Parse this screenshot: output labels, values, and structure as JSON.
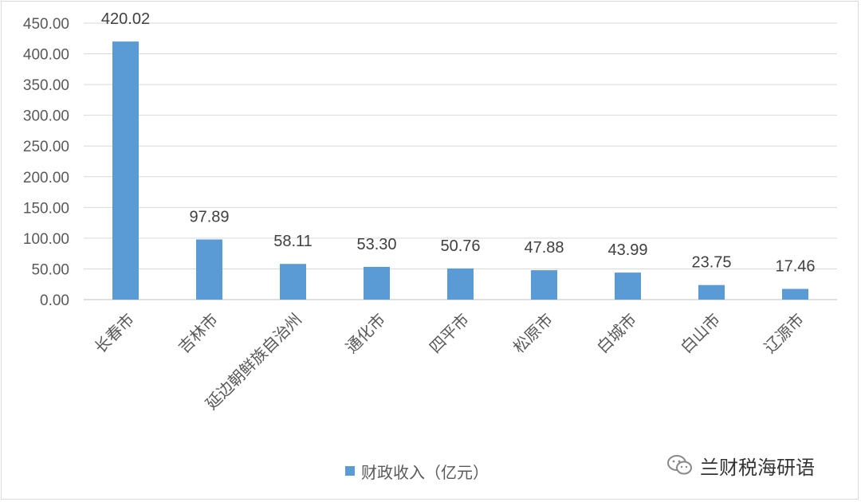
{
  "chart_data": {
    "type": "bar",
    "categories": [
      "长春市",
      "吉林市",
      "延边朝鲜族自治州",
      "通化市",
      "四平市",
      "松原市",
      "白城市",
      "白山市",
      "辽源市"
    ],
    "series": [
      {
        "name": "财政收入（亿元）",
        "values": [
          420.02,
          97.89,
          58.11,
          53.3,
          50.76,
          47.88,
          43.99,
          23.75,
          17.46
        ],
        "data_labels": [
          "420.02",
          "97.89",
          "58.11",
          "53.30",
          "50.76",
          "47.88",
          "43.99",
          "23.75",
          "17.46"
        ]
      }
    ],
    "ylim": [
      0,
      450
    ],
    "y_ticks": [
      "0.00",
      "50.00",
      "100.00",
      "150.00",
      "200.00",
      "250.00",
      "300.00",
      "350.00",
      "400.00",
      "450.00"
    ],
    "y_tick_values": [
      0,
      50,
      100,
      150,
      200,
      250,
      300,
      350,
      400,
      450
    ],
    "grid": true,
    "legend_position": "bottom",
    "title": "",
    "xlabel": "",
    "ylabel": "",
    "colors": {
      "bar": "#5b9bd5",
      "grid": "#d9d9d9",
      "axis": "#bfbfbf"
    }
  },
  "legend": {
    "label": "财政收入（亿元）"
  },
  "watermark": {
    "text": "兰财税海研语",
    "icon": "wechat-icon"
  }
}
